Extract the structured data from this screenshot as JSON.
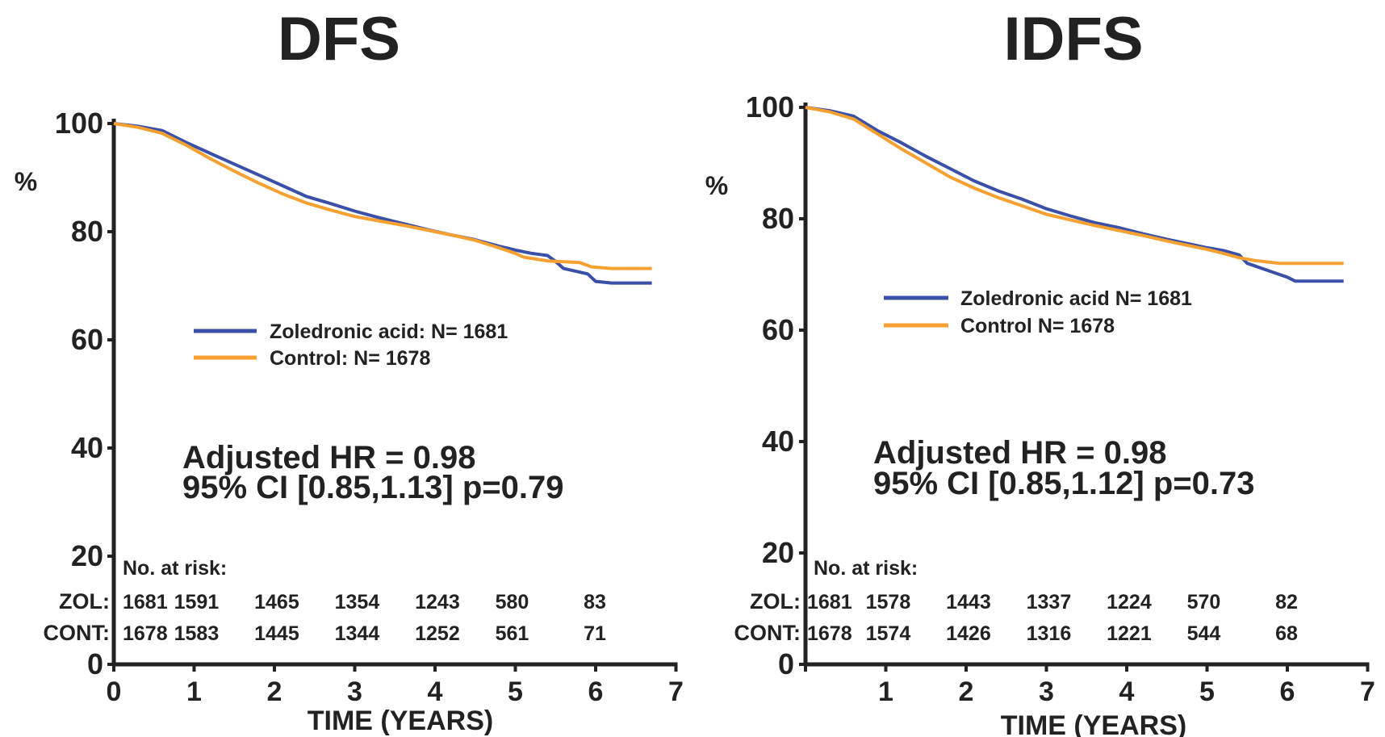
{
  "colors": {
    "zoledronic": "#3a4fa8",
    "control": "#f5a030",
    "axis": "#222222"
  },
  "chart_data": [
    {
      "type": "line",
      "title": "DFS",
      "ylabel": "%",
      "xlabel": "TIME (YEARS)",
      "xlim": [
        0,
        7
      ],
      "ylim": [
        0,
        100
      ],
      "xticks": [
        "0",
        "1",
        "2",
        "3",
        "4",
        "5",
        "6",
        "7"
      ],
      "yticks": [
        "0",
        "20",
        "40",
        "60",
        "80",
        "100"
      ],
      "grid": false,
      "legend_position": "center",
      "series": [
        {
          "name": "Zoledronic acid:  N= 1681",
          "color": "#3a4fa8",
          "points": [
            [
              0,
              100
            ],
            [
              0.3,
              99.5
            ],
            [
              0.6,
              98.7
            ],
            [
              0.9,
              96.5
            ],
            [
              1.2,
              94.5
            ],
            [
              1.5,
              92.5
            ],
            [
              1.8,
              90.5
            ],
            [
              2.1,
              88.5
            ],
            [
              2.4,
              86.5
            ],
            [
              2.7,
              85.2
            ],
            [
              3.0,
              83.8
            ],
            [
              3.3,
              82.6
            ],
            [
              3.6,
              81.5
            ],
            [
              3.9,
              80.4
            ],
            [
              4.2,
              79.4
            ],
            [
              4.5,
              78.5
            ],
            [
              4.8,
              77.3
            ],
            [
              5.0,
              76.6
            ],
            [
              5.2,
              76.0
            ],
            [
              5.4,
              75.6
            ],
            [
              5.5,
              74.5
            ],
            [
              5.6,
              73.2
            ],
            [
              5.9,
              72.2
            ],
            [
              6.0,
              70.8
            ],
            [
              6.2,
              70.5
            ],
            [
              6.7,
              70.5
            ]
          ]
        },
        {
          "name": "Control:  N= 1678",
          "color": "#f5a030",
          "points": [
            [
              0,
              100
            ],
            [
              0.3,
              99.3
            ],
            [
              0.6,
              98.2
            ],
            [
              0.9,
              96.0
            ],
            [
              1.2,
              93.5
            ],
            [
              1.5,
              91.2
            ],
            [
              1.8,
              89.0
            ],
            [
              2.1,
              87.0
            ],
            [
              2.4,
              85.3
            ],
            [
              2.7,
              84.0
            ],
            [
              3.0,
              82.8
            ],
            [
              3.3,
              82.0
            ],
            [
              3.6,
              81.2
            ],
            [
              3.9,
              80.3
            ],
            [
              4.2,
              79.4
            ],
            [
              4.5,
              78.4
            ],
            [
              4.8,
              77.0
            ],
            [
              5.0,
              76.0
            ],
            [
              5.1,
              75.3
            ],
            [
              5.4,
              74.6
            ],
            [
              5.8,
              74.3
            ],
            [
              5.95,
              73.5
            ],
            [
              6.2,
              73.2
            ],
            [
              6.7,
              73.2
            ]
          ]
        }
      ],
      "annotations": [
        "Adjusted HR = 0.98",
        "95% CI [0.85,1.13] p=0.79"
      ],
      "risk_table": {
        "title": "No. at risk:",
        "rows": [
          {
            "label": "ZOL:",
            "values": [
              "1681",
              "1591",
              "1465",
              "1354",
              "1243",
              "580",
              "83"
            ],
            "x": [
              0,
              0.75,
              1.75,
              2.75,
              3.75,
              4.75,
              5.85
            ]
          },
          {
            "label": "CONT:",
            "values": [
              "1678",
              "1583",
              "1445",
              "1344",
              "1252",
              "561",
              "71"
            ],
            "x": [
              0,
              0.75,
              1.75,
              2.75,
              3.75,
              4.75,
              5.85
            ]
          }
        ]
      }
    },
    {
      "type": "line",
      "title": "IDFS",
      "ylabel": "%",
      "xlabel": "TIME (YEARS)",
      "xlim": [
        0,
        7
      ],
      "ylim": [
        0,
        100
      ],
      "xticks": [
        "0",
        "1",
        "2",
        "3",
        "4",
        "5",
        "6",
        "7"
      ],
      "yticks": [
        "0",
        "20",
        "40",
        "60",
        "80",
        "100"
      ],
      "grid": false,
      "legend_position": "center",
      "series": [
        {
          "name": "Zoledronic acid N= 1681",
          "color": "#3a4fa8",
          "points": [
            [
              0,
              100
            ],
            [
              0.3,
              99.4
            ],
            [
              0.6,
              98.4
            ],
            [
              0.9,
              95.8
            ],
            [
              1.2,
              93.6
            ],
            [
              1.5,
              91.2
            ],
            [
              1.8,
              89.0
            ],
            [
              2.1,
              86.8
            ],
            [
              2.4,
              85.0
            ],
            [
              2.7,
              83.5
            ],
            [
              3.0,
              81.8
            ],
            [
              3.3,
              80.5
            ],
            [
              3.6,
              79.3
            ],
            [
              3.9,
              78.4
            ],
            [
              4.2,
              77.3
            ],
            [
              4.5,
              76.3
            ],
            [
              4.8,
              75.4
            ],
            [
              5.0,
              74.8
            ],
            [
              5.2,
              74.3
            ],
            [
              5.4,
              73.5
            ],
            [
              5.5,
              72.0
            ],
            [
              5.7,
              71.0
            ],
            [
              6.0,
              69.5
            ],
            [
              6.1,
              68.8
            ],
            [
              6.7,
              68.8
            ]
          ]
        },
        {
          "name": "Control N= 1678",
          "color": "#f5a030",
          "points": [
            [
              0,
              100
            ],
            [
              0.3,
              99.2
            ],
            [
              0.6,
              97.9
            ],
            [
              0.9,
              95.2
            ],
            [
              1.2,
              92.5
            ],
            [
              1.5,
              90.0
            ],
            [
              1.8,
              87.5
            ],
            [
              2.1,
              85.5
            ],
            [
              2.4,
              83.8
            ],
            [
              2.7,
              82.3
            ],
            [
              3.0,
              80.8
            ],
            [
              3.3,
              79.8
            ],
            [
              3.6,
              78.8
            ],
            [
              3.9,
              77.9
            ],
            [
              4.2,
              77.0
            ],
            [
              4.5,
              76.0
            ],
            [
              4.8,
              75.1
            ],
            [
              5.0,
              74.5
            ],
            [
              5.2,
              73.8
            ],
            [
              5.4,
              73.0
            ],
            [
              5.6,
              72.5
            ],
            [
              5.9,
              72.0
            ],
            [
              6.2,
              72.0
            ],
            [
              6.7,
              72.0
            ]
          ]
        }
      ],
      "annotations": [
        "Adjusted HR = 0.98",
        "95% CI [0.85,1.12] p=0.73"
      ],
      "risk_table": {
        "title": "No. at risk:",
        "rows": [
          {
            "label": "ZOL:",
            "values": [
              "1681",
              "1578",
              "1443",
              "1337",
              "1224",
              "570",
              "82"
            ],
            "x": [
              0,
              0.75,
              1.75,
              2.75,
              3.75,
              4.75,
              5.85
            ]
          },
          {
            "label": "CONT:",
            "values": [
              "1678",
              "1574",
              "1426",
              "1316",
              "1221",
              "544",
              "68"
            ],
            "x": [
              0,
              0.75,
              1.75,
              2.75,
              3.75,
              4.75,
              5.85
            ]
          }
        ]
      }
    }
  ]
}
